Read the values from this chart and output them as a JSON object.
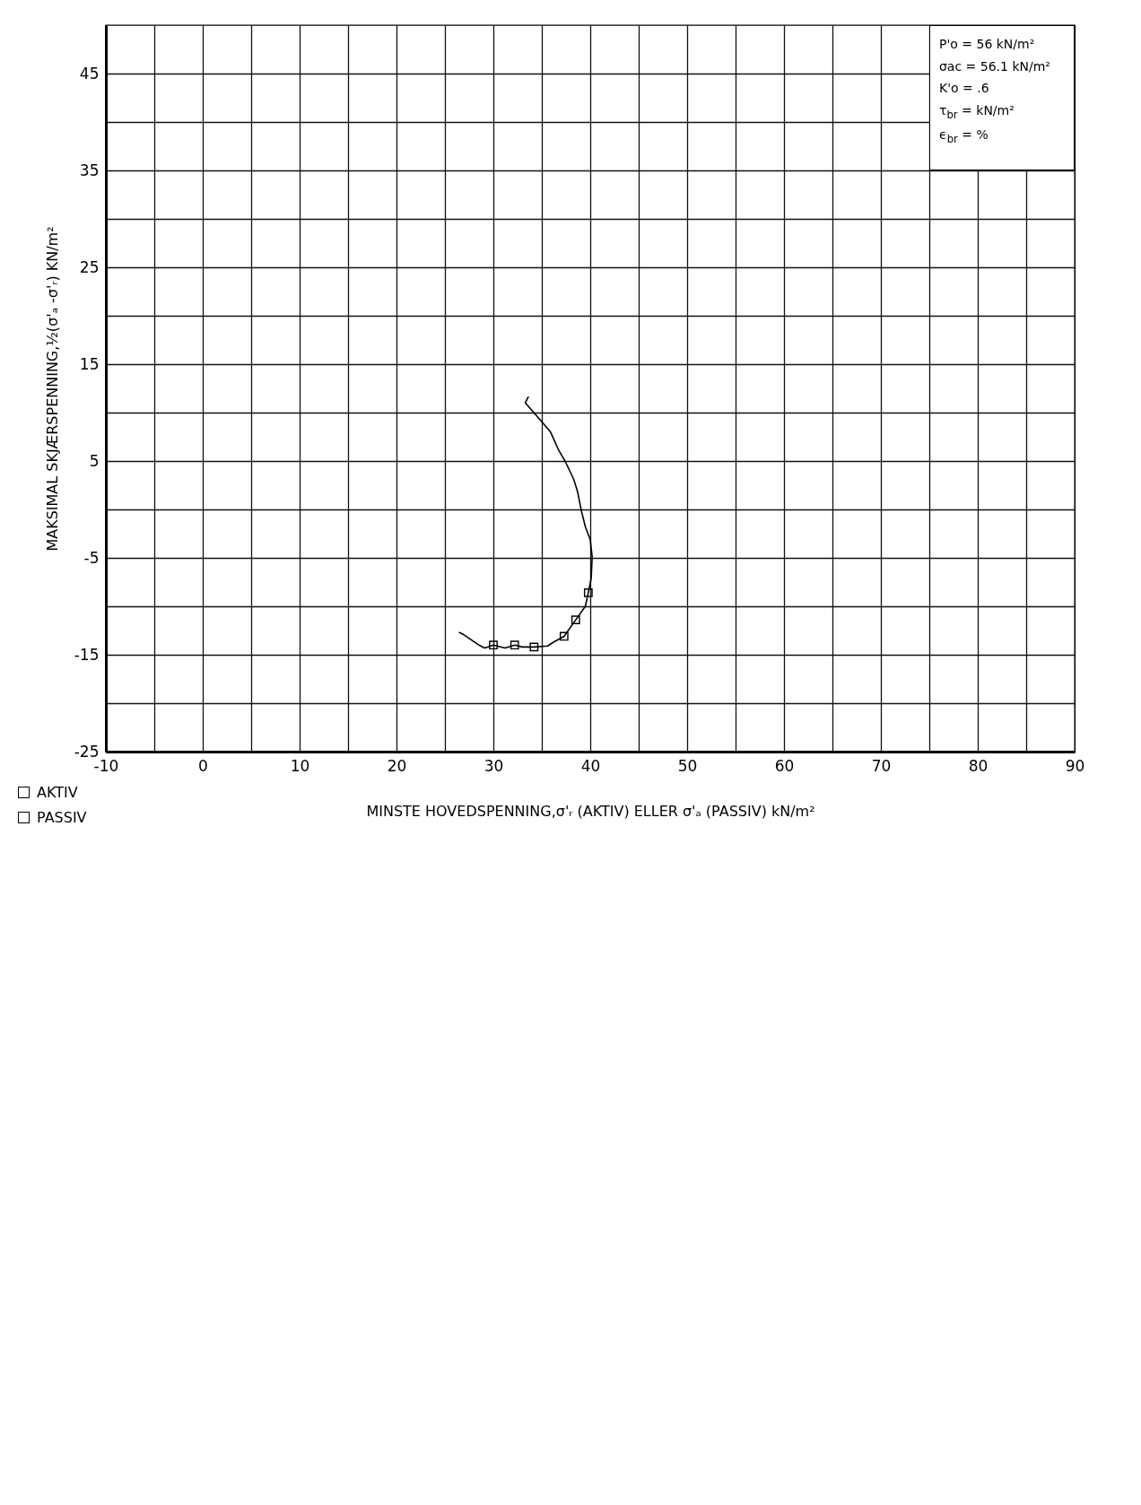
{
  "chart_data": {
    "type": "line",
    "xlabel": "MINSTE HOVEDSPENNING,σ'ᵣ (AKTIV) ELLER σ'ₐ (PASSIV) kN/m²",
    "ylabel": "MAKSIMAL SKJÆRSPENNING,½(σ'ₐ -σ'ᵣ) KN/m²",
    "xlim": [
      -10,
      90
    ],
    "xticks": [
      -10,
      {
        "value": -5,
        "label": null
      },
      0,
      {
        "value": 5,
        "label": null
      },
      10,
      {
        "value": 15,
        "label": null
      },
      20,
      {
        "value": 25,
        "label": null
      },
      30,
      {
        "value": 35,
        "label": null
      },
      40,
      {
        "value": 45,
        "label": null
      },
      50,
      {
        "value": 55,
        "label": null
      },
      60,
      {
        "value": 65,
        "label": null
      },
      70,
      {
        "value": 75,
        "label": null
      },
      80,
      {
        "value": 85,
        "label": null
      },
      90
    ],
    "ylim": [
      -25,
      50
    ],
    "yticks": [
      -25,
      {
        "value": -20,
        "label": null
      },
      -15,
      {
        "value": -10,
        "label": null
      },
      -5,
      {
        "value": 0,
        "label": null
      },
      5,
      {
        "value": 10,
        "label": null
      },
      15,
      {
        "value": 20,
        "label": null
      },
      25,
      {
        "value": 30,
        "label": null
      },
      35,
      {
        "value": 40,
        "label": null
      },
      45
    ],
    "grid": true,
    "series": [
      {
        "type": "line",
        "color": "#000000",
        "x": [
          33.6,
          33.3,
          34.0,
          35.9,
          36.7,
          37.4,
          38.3,
          38.7,
          39.1,
          39.5,
          40.0,
          40.2,
          40.1,
          39.8,
          39.5,
          38.5,
          37.3,
          36.2,
          35.6,
          34.2,
          33.0,
          32.2,
          31.2,
          30.0,
          29.1,
          28.5,
          26.9,
          26.5
        ],
        "values": [
          11.6,
          11.0,
          10.2,
          8.0,
          6.2,
          5.0,
          3.1,
          1.8,
          -0.2,
          -1.8,
          -3.1,
          -4.9,
          -7.1,
          -8.6,
          -10.0,
          -11.4,
          -13.1,
          -13.7,
          -14.1,
          -14.2,
          -14.2,
          -14.0,
          -14.3,
          -14.0,
          -14.3,
          -14.0,
          -12.9,
          -12.7
        ]
      },
      {
        "type": "scatter",
        "color": "#000000",
        "marker": "square",
        "x": [
          30.0,
          32.2,
          34.2,
          37.3,
          38.5,
          39.8
        ],
        "values": [
          -14.0,
          -14.0,
          -14.2,
          -13.1,
          -11.4,
          -8.6
        ]
      }
    ],
    "annotations": [
      "P'o = 56 kN/m²",
      "σac = 56.1 kN/m²",
      "K'o = .6",
      "τ$_{br}$ = kN/m²",
      "ϵ$_{br}$ = %",
      "AKTIV",
      "PASSIV"
    ]
  }
}
